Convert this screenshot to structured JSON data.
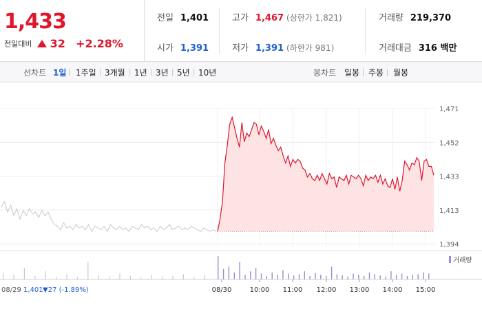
{
  "summary": {
    "current_price": "1,433",
    "change_label": "전일대비",
    "change_amount": "32",
    "change_rate": "+2.28%",
    "prev_close_label": "전일",
    "prev_close": "1,401",
    "open_label": "시가",
    "open": "1,391",
    "high_label": "고가",
    "high": "1,467",
    "upper_limit": "(상한가 1,821)",
    "low_label": "저가",
    "low": "1,391",
    "lower_limit": "(하한가 981)",
    "volume_label": "거래량",
    "volume": "219,370",
    "trade_value_label": "거래대금",
    "trade_value": "316 백만"
  },
  "period_bar": {
    "line_chart_label": "선차트",
    "periods": [
      "1일",
      "1주일",
      "3개월",
      "1년",
      "3년",
      "5년",
      "10년"
    ],
    "active_period": "1일",
    "candle_label": "봉차트",
    "candles": [
      "일봉",
      "주봉",
      "월봉"
    ]
  },
  "colors": {
    "up": "#e0162b",
    "down": "#1d5fd1",
    "prev_day_line": "#c8c8c8",
    "area_fill": "#fde3e3",
    "volume_prev": "#c8c8c8",
    "volume_today": "#9b8bd0"
  },
  "chart_data": {
    "type": "line",
    "y_ticks": [
      "1,471",
      "1,452",
      "1,433",
      "1,413",
      "1,394"
    ],
    "ylim": [
      1394,
      1471
    ],
    "prev_close_value": 1401,
    "x_tick_labels": [
      "08/30",
      "10:00",
      "11:00",
      "12:00",
      "13:00",
      "14:00",
      "15:00"
    ],
    "prev_day_label": "08/29",
    "prev_day_price": "1,401",
    "prev_day_change": "▼27 (-1.89%)",
    "volume_legend": "거래량",
    "prev_day_series": [
      1415,
      1418,
      1412,
      1416,
      1410,
      1414,
      1408,
      1413,
      1410,
      1414,
      1411,
      1412,
      1409,
      1413,
      1410,
      1412,
      1408,
      1405,
      1404,
      1402,
      1406,
      1403,
      1404,
      1402,
      1405,
      1403,
      1404,
      1402,
      1405,
      1401,
      1404,
      1403,
      1402,
      1404,
      1401,
      1405,
      1403,
      1402,
      1404,
      1402,
      1403,
      1401,
      1404,
      1403,
      1402,
      1405,
      1403,
      1404,
      1402,
      1403,
      1401,
      1404,
      1402,
      1403,
      1405,
      1402,
      1403,
      1404,
      1402,
      1403,
      1402,
      1404,
      1403,
      1402,
      1401,
      1403,
      1402,
      1401,
      1402,
      1401
    ],
    "today_series": [
      1401,
      1408,
      1418,
      1440,
      1450,
      1462,
      1466,
      1460,
      1454,
      1449,
      1463,
      1452,
      1457,
      1455,
      1459,
      1463,
      1462,
      1456,
      1461,
      1458,
      1454,
      1459,
      1451,
      1454,
      1450,
      1447,
      1449,
      1444,
      1440,
      1444,
      1438,
      1442,
      1440,
      1442,
      1441,
      1437,
      1436,
      1432,
      1434,
      1431,
      1430,
      1433,
      1430,
      1434,
      1431,
      1428,
      1434,
      1431,
      1432,
      1426,
      1432,
      1431,
      1430,
      1433,
      1428,
      1433,
      1432,
      1431,
      1433,
      1431,
      1427,
      1433,
      1430,
      1432,
      1431,
      1433,
      1429,
      1433,
      1428,
      1431,
      1427,
      1426,
      1431,
      1425,
      1432,
      1424,
      1430,
      1441,
      1439,
      1436,
      1440,
      1439,
      1443,
      1441,
      1430,
      1441,
      1442,
      1438,
      1438,
      1433
    ],
    "prev_day_volume": [
      12,
      8,
      20,
      6,
      14,
      5,
      9,
      4,
      30,
      7,
      5,
      10,
      6,
      4,
      8,
      5,
      6,
      9,
      4,
      7
    ],
    "today_volume": [
      40,
      18,
      22,
      12,
      30,
      8,
      14,
      20,
      10,
      6,
      12,
      8,
      16,
      10,
      7,
      9,
      14,
      6,
      11,
      8,
      6,
      22,
      9,
      7,
      5,
      10,
      8,
      6,
      12,
      9,
      7,
      5,
      14,
      8,
      10,
      6,
      8,
      9,
      12,
      10
    ]
  }
}
